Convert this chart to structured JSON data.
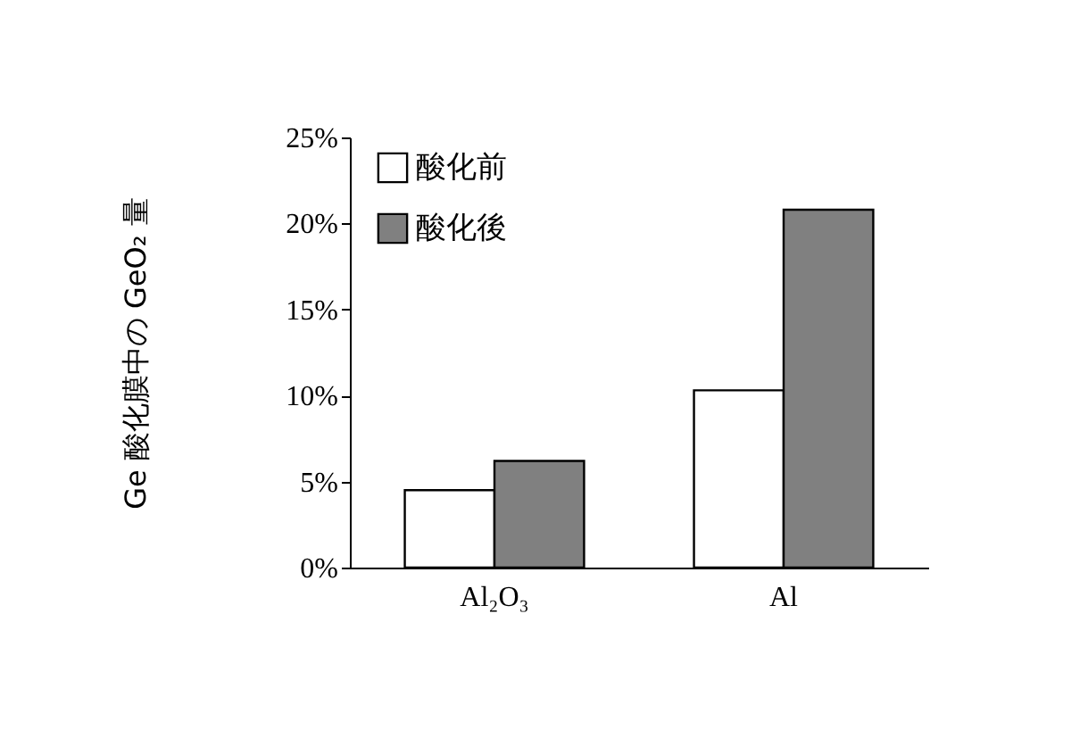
{
  "chart_data": {
    "type": "bar",
    "ylabel": "Ge 酸化膜中の GeO₂ 量",
    "categories": [
      "Al₂O₃",
      "Al"
    ],
    "series": [
      {
        "name": "酸化前",
        "color": "#ffffff",
        "values": [
          4.5,
          10.3
        ]
      },
      {
        "name": "酸化後",
        "color": "#808080",
        "values": [
          6.2,
          20.8
        ]
      }
    ],
    "ylim": [
      0,
      25
    ],
    "yticks": [
      {
        "value": 0,
        "label": "0%"
      },
      {
        "value": 5,
        "label": "5%"
      },
      {
        "value": 10,
        "label": "10%"
      },
      {
        "value": 15,
        "label": "15%"
      },
      {
        "value": 20,
        "label": "20%"
      },
      {
        "value": 25,
        "label": "25%"
      }
    ],
    "grid": false,
    "legend": "top left"
  }
}
